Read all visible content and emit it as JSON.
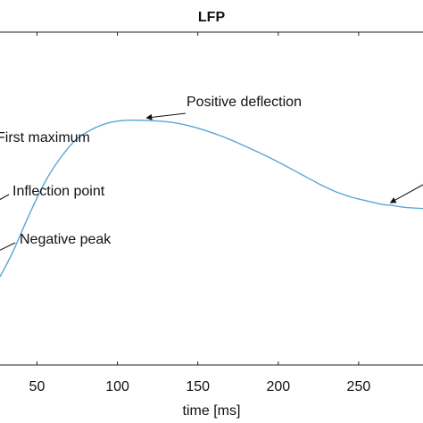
{
  "chart_data": {
    "type": "line",
    "title": "LFP",
    "xlabel": "time [ms]",
    "ylabel": "",
    "xlim": [
      27,
      290
    ],
    "ylim": [
      0,
      1
    ],
    "x_ticks": [
      50,
      100,
      150,
      200,
      250
    ],
    "grid": false,
    "series": [
      {
        "color": "#5aa6d4",
        "x": [
          27,
          35,
          45,
          55,
          65,
          75,
          85,
          95,
          105,
          115,
          125,
          135,
          145,
          155,
          165,
          175,
          185,
          195,
          205,
          215,
          225,
          235,
          245,
          255,
          265,
          270,
          275,
          280,
          290
        ],
        "y": [
          0.265,
          0.34,
          0.45,
          0.55,
          0.625,
          0.68,
          0.71,
          0.728,
          0.735,
          0.735,
          0.733,
          0.728,
          0.718,
          0.704,
          0.687,
          0.667,
          0.645,
          0.622,
          0.597,
          0.571,
          0.545,
          0.522,
          0.505,
          0.493,
          0.482,
          0.48,
          0.476,
          0.473,
          0.47
        ]
      }
    ],
    "annotations": [
      {
        "text": "Positive deflection",
        "x": 118,
        "y": 0.737
      },
      {
        "text": "First maximum",
        "x": null,
        "y": null
      },
      {
        "text": "Inflection point",
        "x": 27,
        "y": 0.42
      },
      {
        "text": "Negative peak",
        "x": 27,
        "y": 0.25
      },
      {
        "text": "",
        "x": 268,
        "y": 0.482
      }
    ]
  }
}
